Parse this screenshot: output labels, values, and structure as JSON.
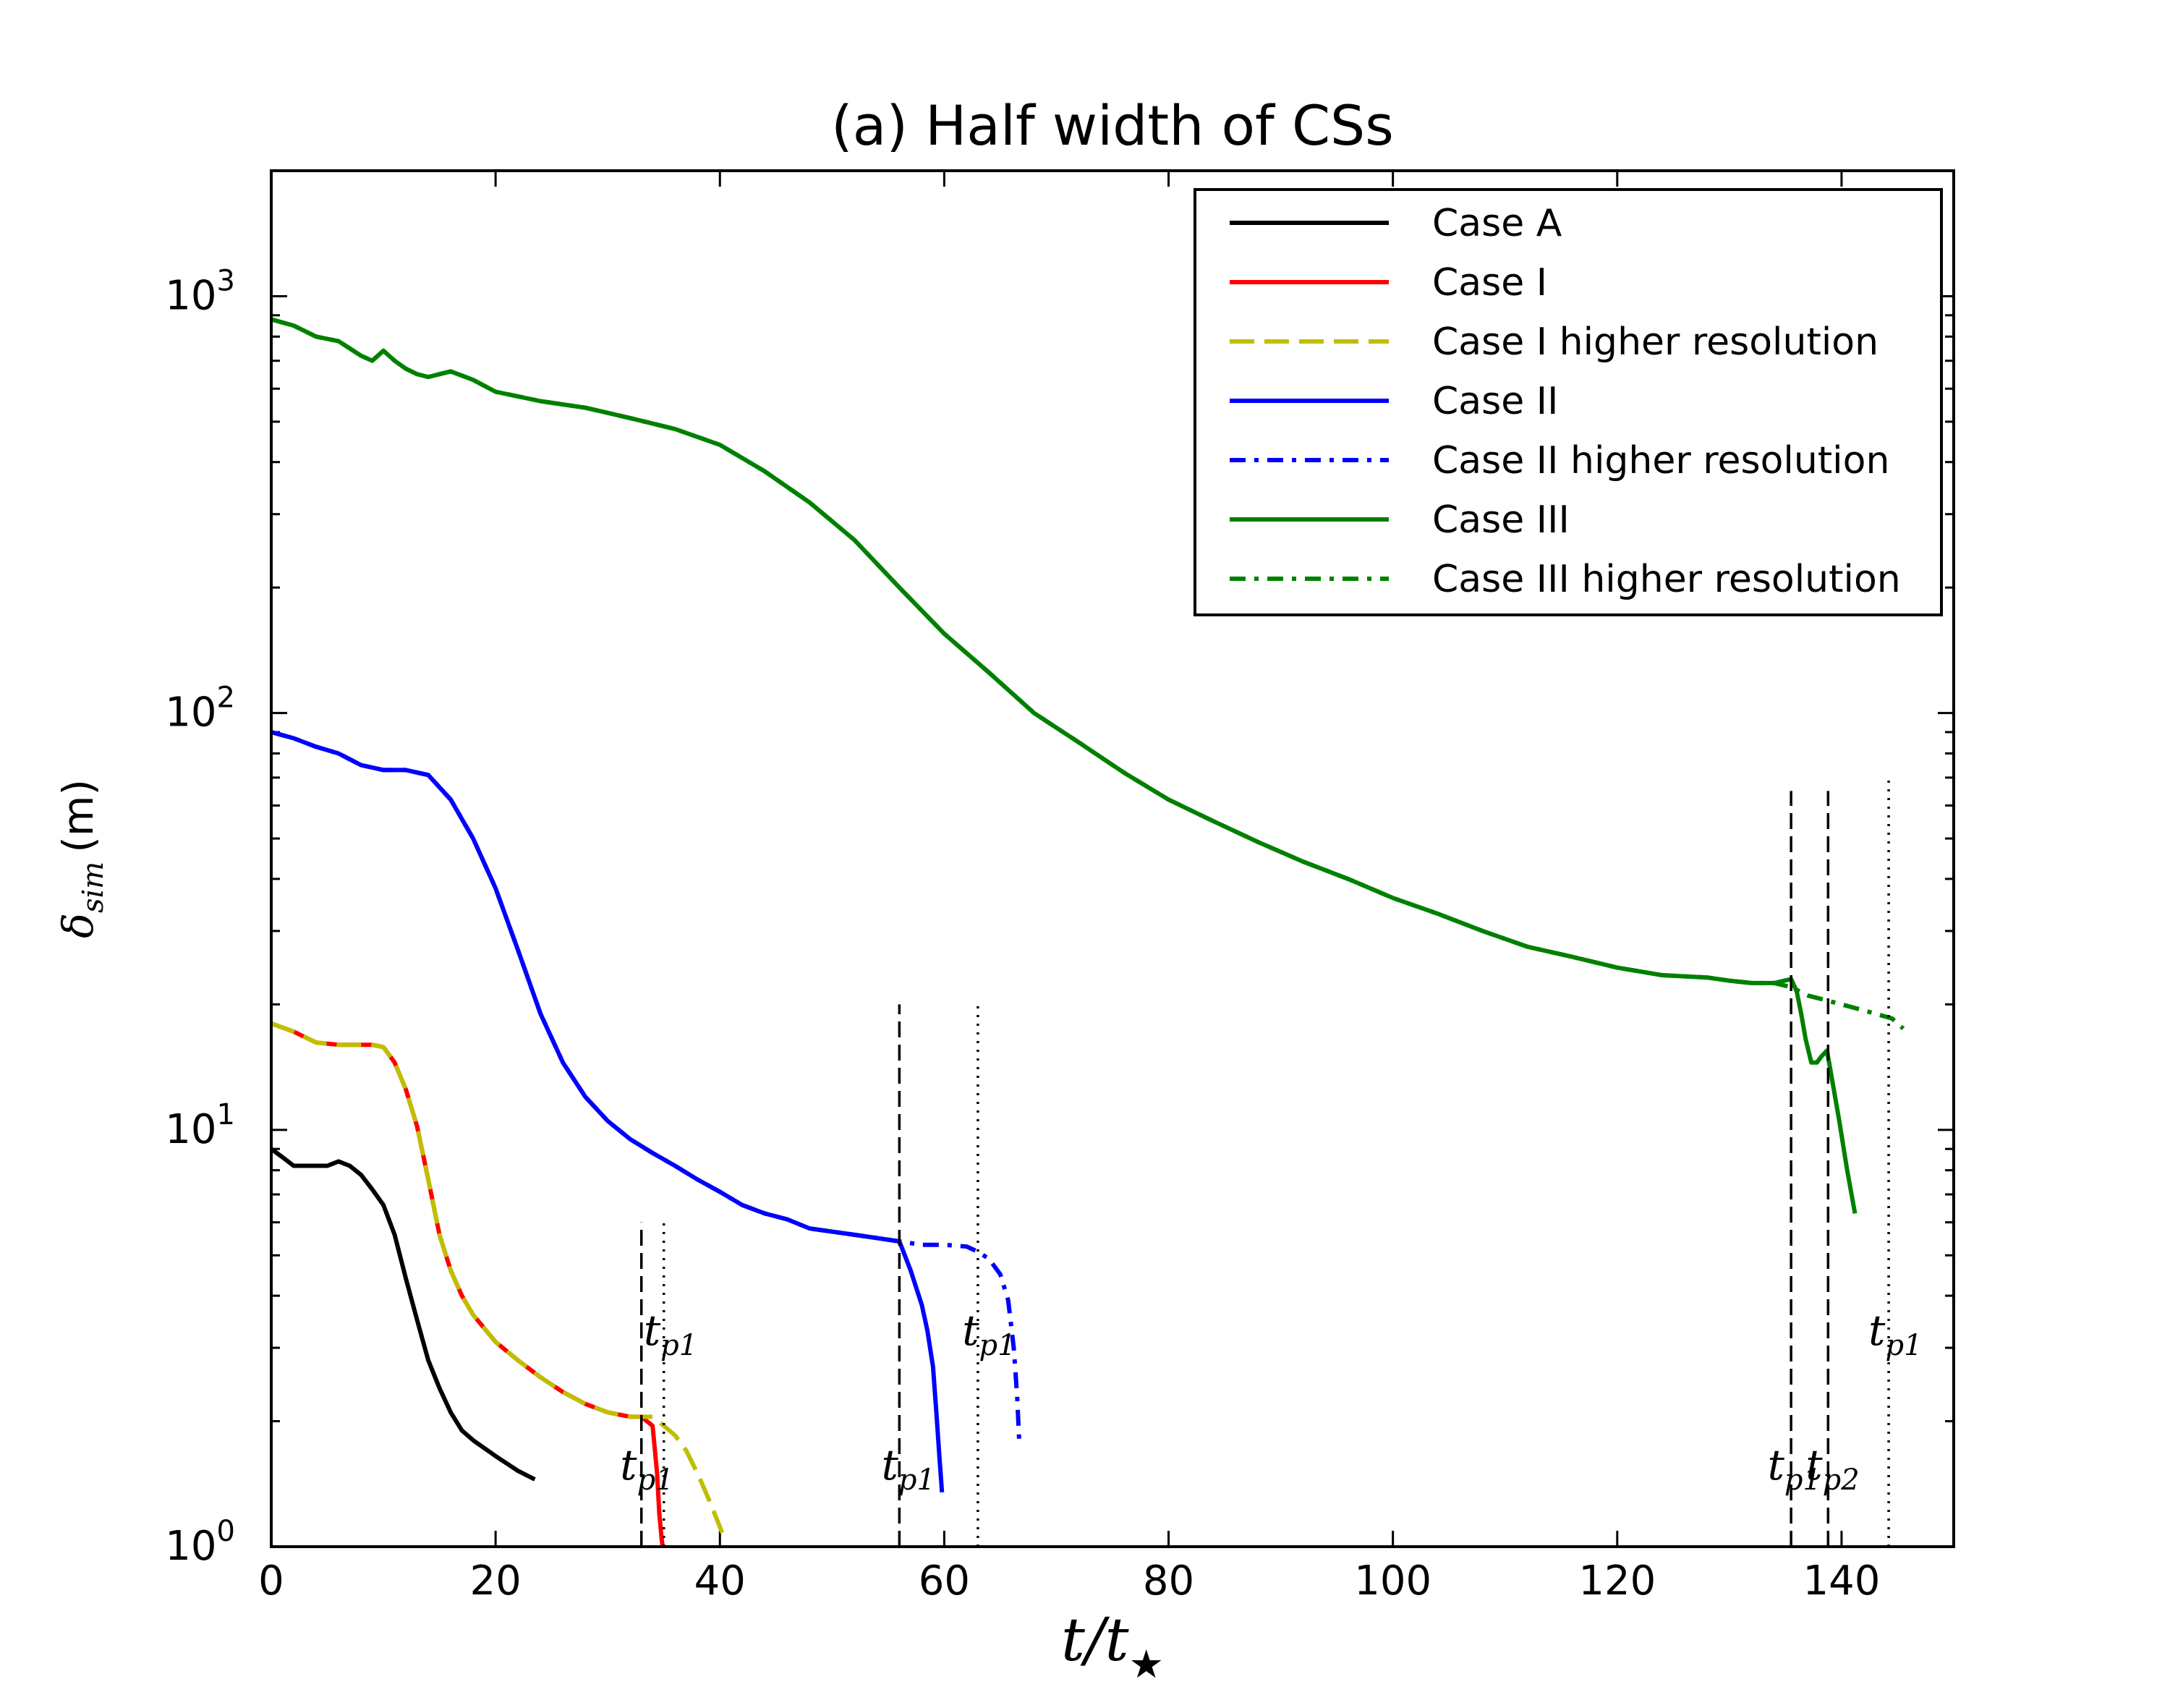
{
  "chart_data": {
    "type": "line",
    "title": "(a) Half width of CSs",
    "xlabel": "t/t",
    "xlabel_sub": "★",
    "ylabel": "δ",
    "ylabel_sub": "sim",
    "ylabel_unit": "(m)",
    "xlim": [
      0,
      150
    ],
    "ylim": [
      1,
      2000
    ],
    "yscale": "log",
    "xticks": [
      0,
      20,
      40,
      60,
      80,
      100,
      120,
      140
    ],
    "xtick_labels": [
      "0",
      "20",
      "40",
      "60",
      "80",
      "100",
      "120",
      "140"
    ],
    "yticks": [
      1,
      10,
      100,
      1000
    ],
    "ytick_labels": [
      {
        "base": "10",
        "exp": "0"
      },
      {
        "base": "10",
        "exp": "1"
      },
      {
        "base": "10",
        "exp": "2"
      },
      {
        "base": "10",
        "exp": "3"
      }
    ],
    "legend_position": "top-right",
    "series": [
      {
        "name": "Case A",
        "color": "#000000",
        "style": "solid",
        "x": [
          0,
          1,
          2,
          3,
          4,
          5,
          6,
          7,
          8,
          9,
          10,
          11,
          12,
          13,
          14,
          15,
          16,
          17,
          18,
          20,
          22,
          23.5
        ],
        "y": [
          9,
          8.6,
          8.2,
          8.2,
          8.2,
          8.2,
          8.4,
          8.2,
          7.8,
          7.2,
          6.6,
          5.6,
          4.4,
          3.5,
          2.8,
          2.4,
          2.1,
          1.9,
          1.8,
          1.65,
          1.52,
          1.45
        ]
      },
      {
        "name": "Case I",
        "color": "#ff0000",
        "style": "solid",
        "x": [
          0,
          2,
          4,
          6,
          8,
          9,
          10,
          11,
          12,
          13,
          14,
          15,
          16,
          17,
          18,
          20,
          22,
          24,
          26,
          28,
          30,
          32,
          33,
          34,
          34.4,
          34.6,
          34.8,
          35
        ],
        "y": [
          18,
          17.2,
          16.2,
          16,
          16,
          16,
          15.8,
          14.5,
          12.5,
          10.2,
          7.6,
          5.6,
          4.6,
          4,
          3.6,
          3.1,
          2.8,
          2.55,
          2.35,
          2.2,
          2.1,
          2.05,
          2.05,
          1.95,
          1.5,
          1.2,
          1.05,
          0.95
        ]
      },
      {
        "name": "Case I higher resolution",
        "color": "#bfbf00",
        "style": "dashed",
        "x": [
          0,
          2,
          4,
          6,
          8,
          9,
          10,
          11,
          12,
          13,
          14,
          15,
          16,
          17,
          18,
          20,
          22,
          24,
          26,
          28,
          30,
          32,
          33,
          34,
          35,
          36,
          37,
          38,
          39,
          39.8,
          40.2
        ],
        "y": [
          18,
          17.2,
          16.2,
          16,
          16,
          16,
          15.8,
          14.5,
          12.5,
          10.2,
          7.6,
          5.6,
          4.6,
          4,
          3.6,
          3.1,
          2.8,
          2.55,
          2.35,
          2.2,
          2.1,
          2.05,
          2.05,
          2.05,
          1.95,
          1.85,
          1.7,
          1.5,
          1.3,
          1.15,
          1.08
        ]
      },
      {
        "name": "Case II",
        "color": "#0000ff",
        "style": "solid",
        "x": [
          0,
          2,
          4,
          6,
          8,
          10,
          12,
          14,
          16,
          18,
          20,
          22,
          24,
          26,
          28,
          30,
          32,
          34,
          36,
          38,
          40,
          42,
          44,
          46,
          48,
          50,
          52,
          54,
          56,
          57,
          58,
          58.5,
          59,
          59.3,
          59.6,
          59.8
        ],
        "y": [
          90,
          87,
          83,
          80,
          75,
          73,
          73,
          71,
          62,
          50,
          38,
          27,
          19,
          14.5,
          12,
          10.5,
          9.5,
          8.8,
          8.2,
          7.6,
          7.1,
          6.6,
          6.3,
          6.1,
          5.8,
          5.7,
          5.6,
          5.5,
          5.4,
          4.6,
          3.8,
          3.3,
          2.7,
          2.1,
          1.6,
          1.35
        ]
      },
      {
        "name": "Case II higher resolution",
        "color": "#0000ff",
        "style": "dashdot",
        "x": [
          0,
          2,
          4,
          6,
          8,
          10,
          12,
          14,
          16,
          18,
          20,
          22,
          24,
          26,
          28,
          30,
          32,
          34,
          36,
          38,
          40,
          42,
          44,
          46,
          48,
          50,
          52,
          54,
          56,
          58,
          60,
          62,
          63,
          64,
          65,
          65.7,
          66.2,
          66.5,
          66.7
        ],
        "y": [
          90,
          87,
          83,
          80,
          75,
          73,
          73,
          71,
          62,
          50,
          38,
          27,
          19,
          14.5,
          12,
          10.5,
          9.5,
          8.8,
          8.2,
          7.6,
          7.1,
          6.6,
          6.3,
          6.1,
          5.8,
          5.7,
          5.6,
          5.5,
          5.4,
          5.3,
          5.3,
          5.25,
          5.1,
          4.9,
          4.5,
          3.9,
          3,
          2.3,
          1.75
        ]
      },
      {
        "name": "Case III",
        "color": "#008000",
        "style": "solid",
        "x": [
          0,
          2,
          4,
          6,
          8,
          9,
          10,
          11,
          12,
          13,
          14,
          15,
          16,
          18,
          20,
          24,
          28,
          32,
          36,
          40,
          44,
          48,
          52,
          56,
          60,
          64,
          68,
          72,
          76,
          80,
          84,
          88,
          92,
          96,
          100,
          104,
          108,
          112,
          116,
          120,
          124,
          128,
          130,
          132,
          134,
          135.5,
          136,
          136.4,
          136.8,
          137.3,
          137.8,
          138.2,
          138.7,
          139.2,
          139.8,
          140.5,
          141.2
        ],
        "y": [
          880,
          850,
          800,
          780,
          720,
          700,
          740,
          700,
          670,
          650,
          640,
          650,
          660,
          630,
          590,
          560,
          540,
          510,
          480,
          440,
          380,
          320,
          260,
          200,
          155,
          125,
          100,
          85,
          72,
          62,
          55,
          49,
          44,
          40,
          36,
          33,
          30,
          27.5,
          26,
          24.5,
          23.5,
          23.2,
          22.8,
          22.5,
          22.5,
          23,
          21.5,
          19,
          16.5,
          14.5,
          14.5,
          15,
          15.5,
          13,
          10.5,
          8,
          6.3
        ]
      },
      {
        "name": "Case III higher resolution",
        "color": "#008000",
        "style": "dashdot",
        "x": [
          0,
          2,
          4,
          6,
          8,
          9,
          10,
          11,
          12,
          13,
          14,
          15,
          16,
          18,
          20,
          24,
          28,
          32,
          36,
          40,
          44,
          48,
          52,
          56,
          60,
          64,
          68,
          72,
          76,
          80,
          84,
          88,
          92,
          96,
          100,
          104,
          108,
          112,
          116,
          120,
          124,
          128,
          130,
          132,
          134,
          135.5,
          137,
          138.5,
          140,
          141.5,
          143,
          144.5,
          145.5
        ],
        "y": [
          880,
          850,
          800,
          780,
          720,
          700,
          740,
          700,
          670,
          650,
          640,
          650,
          660,
          630,
          590,
          560,
          540,
          510,
          480,
          440,
          380,
          320,
          260,
          200,
          155,
          125,
          100,
          85,
          72,
          62,
          55,
          49,
          44,
          40,
          36,
          33,
          30,
          27.5,
          26,
          24.5,
          23.5,
          23.2,
          22.8,
          22.5,
          22.5,
          22,
          21,
          20.5,
          20,
          19.5,
          19,
          18.5,
          17.5
        ]
      }
    ],
    "vlines": [
      {
        "x": 33,
        "y_top": 6,
        "style": "dashed"
      },
      {
        "x": 35,
        "y_top": 6,
        "style": "dotted"
      },
      {
        "x": 56,
        "y_top": 20,
        "style": "dashed"
      },
      {
        "x": 63,
        "y_top": 20,
        "style": "dotted"
      },
      {
        "x": 135.5,
        "y_top": 65,
        "style": "dashed"
      },
      {
        "x": 138.8,
        "y_top": 65,
        "style": "dashed"
      },
      {
        "x": 144.2,
        "y_top": 70,
        "style": "dotted"
      }
    ],
    "annotations": [
      {
        "x": 35.6,
        "y": 3.05,
        "base": "t",
        "sub": "p1"
      },
      {
        "x": 33.5,
        "y": 1.45,
        "base": "t",
        "sub": "p1"
      },
      {
        "x": 64,
        "y": 3.05,
        "base": "t",
        "sub": "p1"
      },
      {
        "x": 56.8,
        "y": 1.45,
        "base": "t",
        "sub": "p1"
      },
      {
        "x": 135.8,
        "y": 1.45,
        "base": "t",
        "sub": "p1"
      },
      {
        "x": 139.2,
        "y": 1.45,
        "base": "t",
        "sub": "p2"
      },
      {
        "x": 144.8,
        "y": 3.05,
        "base": "t",
        "sub": "p1"
      }
    ]
  }
}
